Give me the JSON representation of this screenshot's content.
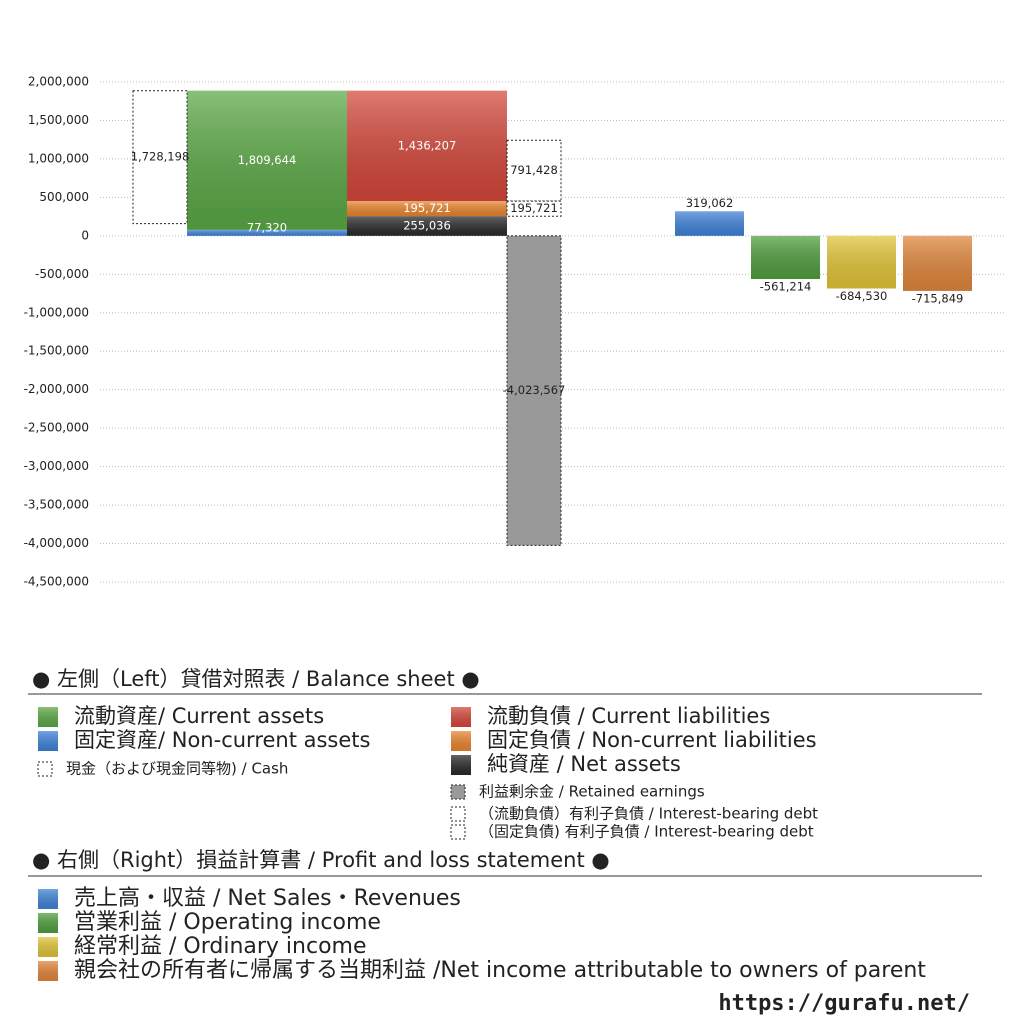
{
  "chart_data": {
    "type": "bar",
    "ylim": [
      -4500000,
      2000000
    ],
    "yticks": [
      {
        "value": -4500000,
        "label": "-4,500,000"
      },
      {
        "value": -4000000,
        "label": "-4,000,000"
      },
      {
        "value": -3500000,
        "label": "-3,500,000"
      },
      {
        "value": -3000000,
        "label": "-3,000,000"
      },
      {
        "value": -2500000,
        "label": "-2,500,000"
      },
      {
        "value": -2000000,
        "label": "-2,000,000"
      },
      {
        "value": -1500000,
        "label": "-1,500,000"
      },
      {
        "value": -1000000,
        "label": "-1,000,000"
      },
      {
        "value": -500000,
        "label": "-500,000"
      },
      0,
      {
        "value": 500000,
        "label": "500,000"
      },
      {
        "value": 1000000,
        "label": "1,000,000"
      },
      {
        "value": 1500000,
        "label": "1,500,000"
      },
      {
        "value": 2000000,
        "label": "2,000,000"
      }
    ],
    "grid": true,
    "legend_headings": [
      "● 左側（Left）貸借対照表 / Balance sheet ●",
      "● 右側（Right）損益計算書 / Profit and loss statement ●"
    ],
    "source": "https://gurafu.net/",
    "series": [
      {
        "name": "流動資産/ Current assets",
        "color": "#5aa845",
        "style": "solid",
        "values": [
          1809644
        ],
        "value_labels": [
          "1,809,644"
        ]
      },
      {
        "name": "固定資産/ Non-current assets",
        "color": "#3f82d8",
        "style": "solid",
        "values": [
          77320
        ],
        "value_labels": [
          "77,320"
        ]
      },
      {
        "name": "現金（および現金同等物) / Cash",
        "color": "#ffffff",
        "style": "dashed",
        "values": [
          1728198
        ],
        "value_labels": [
          "1,728,198"
        ]
      },
      {
        "name": "流動負債 /  Current liabilities",
        "color": "#d4473a",
        "style": "solid",
        "values": [
          1436207
        ],
        "value_labels": [
          "1,436,207"
        ]
      },
      {
        "name": "固定負債 / Non-current liabilities",
        "color": "#e8852e",
        "style": "solid",
        "values": [
          195721
        ],
        "value_labels": [
          "195,721"
        ]
      },
      {
        "name": "純資産 / Net assets",
        "color": "#2a2a2a",
        "style": "solid",
        "values": [
          255036
        ],
        "value_labels": [
          "255,036"
        ]
      },
      {
        "name": "利益剰余金 / Retained earnings",
        "color": "#999999",
        "style": "dashed",
        "values": [
          -4023567
        ],
        "value_labels": [
          "-4,023,567"
        ]
      },
      {
        "name": "（流動負債）有利子負債 / Interest-bearing debt",
        "color": "#ffffff",
        "style": "dashed",
        "values": [
          791428
        ],
        "value_labels": [
          "791,428"
        ]
      },
      {
        "name": "（固定負債) 有利子負債 / Interest-bearing debt",
        "color": "#ffffff",
        "style": "dashed",
        "values": [
          195721
        ],
        "value_labels": [
          "195,721"
        ]
      },
      {
        "name": "売上高・収益 / Net Sales・Revenues",
        "color": "#3f82d8",
        "style": "solid",
        "values": [
          319062
        ],
        "value_labels": [
          "319,062"
        ]
      },
      {
        "name": "営業利益 / Operating income",
        "color": "#4f9e3e",
        "style": "solid",
        "values": [
          -561214
        ],
        "value_labels": [
          "-561,214"
        ]
      },
      {
        "name": "経常利益 / Ordinary income",
        "color": "#e2c437",
        "style": "solid",
        "values": [
          -684530
        ],
        "value_labels": [
          "-684,530"
        ]
      },
      {
        "name": "親会社の所有者に帰属する当期利益 /Net income attributable to owners of parent",
        "color": "#e0853a",
        "style": "solid",
        "values": [
          -715849
        ],
        "value_labels": [
          "-715,849"
        ]
      }
    ]
  }
}
